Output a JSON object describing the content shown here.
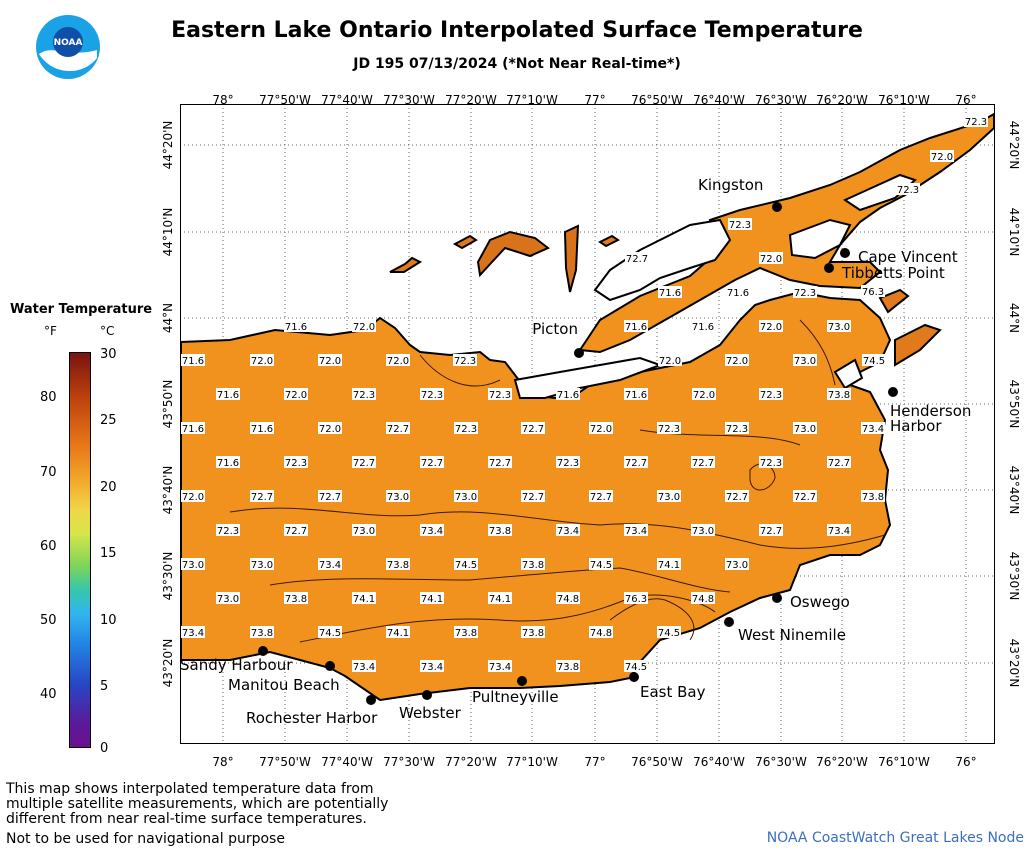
{
  "title": "Eastern Lake Ontario Interpolated Surface Temperature",
  "subtitle": "JD 195 07/13/2024 (*Not Near Real-time*)",
  "logo_text": "NOAA",
  "legend": {
    "title": "Water Temperature",
    "unit_f": "°F",
    "unit_c": "°C",
    "f_ticks": [
      "80",
      "70",
      "60",
      "50",
      "40"
    ],
    "c_ticks": [
      "30",
      "25",
      "20",
      "15",
      "10",
      "5",
      "0"
    ]
  },
  "lon_labels": [
    "78°",
    "77°50'W",
    "77°40'W",
    "77°30'W",
    "77°20'W",
    "77°10'W",
    "77°",
    "76°50'W",
    "76°40'W",
    "76°30'W",
    "76°20'W",
    "76°10'W",
    "76°"
  ],
  "lat_labels": [
    "44°20'N",
    "44°10'N",
    "44°N",
    "43°50'N",
    "43°40'N",
    "43°30'N",
    "43°20'N"
  ],
  "places": [
    "Kingston",
    "Cape Vincent",
    "Tibbetts Point",
    "Picton",
    "Henderson",
    "Harbor",
    "Oswego",
    "West Ninemile",
    "East Bay",
    "Pultneyville",
    "Webster",
    "Rochester Harbor",
    "Manitou Beach",
    "Sandy Harbour"
  ],
  "temperatures": [
    "72.3",
    "72.0",
    "72.3",
    "72.3",
    "72.7",
    "72.0",
    "71.6",
    "71.6",
    "72.3",
    "76.3",
    "71.6",
    "72.0",
    "71.6",
    "71.6",
    "72.0",
    "73.0",
    "71.6",
    "72.0",
    "72.0",
    "72.0",
    "72.3",
    "72.0",
    "72.0",
    "73.0",
    "74.5",
    "71.6",
    "72.0",
    "72.3",
    "72.3",
    "72.3",
    "71.6",
    "71.6",
    "72.0",
    "72.3",
    "73.8",
    "71.6",
    "71.6",
    "72.0",
    "72.7",
    "72.3",
    "72.7",
    "72.0",
    "72.3",
    "72.3",
    "73.0",
    "73.4",
    "71.6",
    "72.3",
    "72.7",
    "72.7",
    "72.7",
    "72.3",
    "72.7",
    "72.7",
    "72.3",
    "72.7",
    "72.0",
    "72.7",
    "72.7",
    "73.0",
    "73.0",
    "72.7",
    "72.7",
    "73.0",
    "72.7",
    "72.7",
    "73.8",
    "72.3",
    "72.7",
    "73.0",
    "73.4",
    "73.8",
    "73.4",
    "73.4",
    "73.0",
    "72.7",
    "73.4",
    "73.0",
    "73.0",
    "73.4",
    "73.8",
    "74.5",
    "73.8",
    "74.5",
    "74.1",
    "73.0",
    "73.0",
    "73.8",
    "74.1",
    "74.1",
    "74.1",
    "74.8",
    "76.3",
    "74.8",
    "73.4",
    "73.8",
    "74.5",
    "74.1",
    "73.8",
    "73.8",
    "74.8",
    "74.5",
    "73.4",
    "73.4",
    "73.4",
    "73.8",
    "74.5"
  ],
  "footnote": [
    "This map shows interpolated temperature data from",
    "multiple satellite measurements, which are potentially",
    "different from near real-time surface temperatures."
  ],
  "disclaimer": "Not to be used for navigational purpose",
  "credit": "NOAA CoastWatch Great Lakes Node",
  "colors": {
    "water": "#f1921f",
    "land": "#ffffff",
    "shore": "#000000",
    "credit": "#3a6fc4"
  }
}
